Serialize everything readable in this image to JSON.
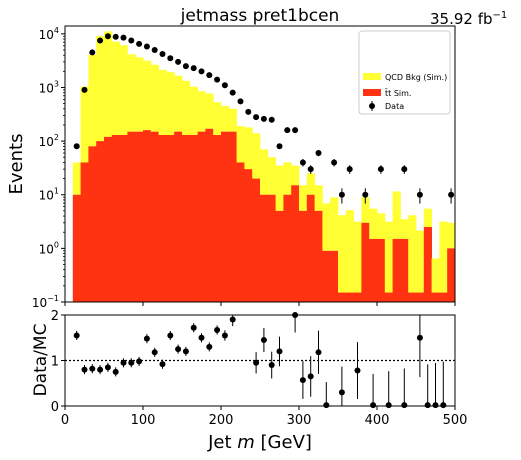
{
  "chart_data": [
    {
      "type": "bar",
      "title": "jetmass  pret1bcen",
      "lumi": "35.92 fb",
      "lumi_exp": "−1",
      "xlabel": "",
      "ylabel": "Events",
      "yscale": "log",
      "xlim": [
        0,
        500
      ],
      "ylim": [
        0.1,
        14000
      ],
      "y_ticks": [
        {
          "v": 0.1,
          "base": "10",
          "exp": "−1"
        },
        {
          "v": 1,
          "base": "10",
          "exp": "0"
        },
        {
          "v": 10,
          "base": "10",
          "exp": "1"
        },
        {
          "v": 100,
          "base": "10",
          "exp": "2"
        },
        {
          "v": 1000,
          "base": "10",
          "exp": "3"
        },
        {
          "v": 10000,
          "base": "10",
          "exp": "4"
        }
      ],
      "bin_width": 10,
      "legend_position": "upper-right",
      "stacked": true,
      "series": [
        {
          "name": "t̄t Sim.",
          "color": "#ff3311",
          "values": [
            0,
            10,
            40,
            80,
            100,
            120,
            130,
            130,
            150,
            150,
            160,
            150,
            130,
            130,
            150,
            130,
            130,
            150,
            170,
            130,
            150,
            150,
            40,
            30,
            20,
            10,
            10,
            5,
            10,
            15,
            5,
            10,
            5,
            0.9,
            0.9,
            0.15,
            0.15,
            0.15,
            3,
            1.5,
            1.5,
            0.15,
            1.5,
            1.5,
            0.15,
            0.15,
            2.5,
            0.15,
            0.15,
            1
          ]
        },
        {
          "name": "QCD Bkg (Sim.)",
          "color": "#ffff33",
          "values": [
            0,
            30,
            1000,
            4000,
            9000,
            11000,
            7000,
            6000,
            4000,
            3500,
            3000,
            2500,
            2000,
            1800,
            1500,
            1200,
            900,
            700,
            600,
            400,
            300,
            250,
            150,
            150,
            120,
            60,
            40,
            30,
            30,
            20,
            10,
            15,
            10,
            6,
            8,
            4,
            5,
            3,
            6,
            4,
            3,
            3,
            10,
            2,
            4,
            2,
            3,
            0.5,
            3,
            2
          ]
        }
      ],
      "data_series": {
        "name": "Data",
        "color": "#000000",
        "x": [
          15,
          25,
          35,
          45,
          55,
          65,
          75,
          85,
          95,
          105,
          115,
          125,
          135,
          145,
          155,
          165,
          175,
          185,
          195,
          205,
          215,
          225,
          235,
          245,
          255,
          265,
          275,
          285,
          295,
          305,
          315,
          325,
          345,
          355,
          365,
          385,
          405,
          435,
          455,
          495
        ],
        "y": [
          80,
          900,
          4500,
          7500,
          9000,
          8800,
          8500,
          7500,
          6500,
          5800,
          5000,
          4200,
          3500,
          3000,
          2500,
          2300,
          2000,
          1700,
          1400,
          1100,
          800,
          550,
          350,
          280,
          260,
          250,
          80,
          160,
          160,
          40,
          30,
          60,
          40,
          10,
          30,
          10,
          30,
          30,
          10,
          10
        ]
      }
    },
    {
      "type": "scatter",
      "xlabel": "Jet m [GeV]",
      "ylabel": "Data/MC",
      "xlim": [
        0,
        500
      ],
      "ylim": [
        0,
        2
      ],
      "x_ticks": [
        "0",
        "100",
        "200",
        "300",
        "400",
        "500"
      ],
      "y_ticks": [
        "0",
        "1",
        "2"
      ],
      "reference_line": 1,
      "x": [
        15,
        25,
        35,
        45,
        55,
        65,
        75,
        85,
        95,
        105,
        115,
        125,
        135,
        145,
        155,
        165,
        175,
        185,
        195,
        205,
        215,
        245,
        255,
        265,
        275,
        295,
        305,
        315,
        325,
        335,
        355,
        375,
        395,
        415,
        435,
        455,
        465,
        475,
        485
      ],
      "y": [
        1.55,
        0.8,
        0.82,
        0.8,
        0.85,
        0.75,
        0.95,
        0.95,
        0.98,
        1.48,
        1.18,
        0.92,
        1.55,
        1.25,
        1.2,
        1.72,
        1.5,
        1.3,
        1.67,
        1.55,
        1.9,
        0.95,
        1.45,
        0.9,
        1.2,
        2.0,
        0.57,
        0.65,
        1.18,
        0.02,
        0.3,
        0.78,
        0.02,
        0.02,
        0.02,
        1.5,
        0.02,
        0.02,
        0.02
      ]
    }
  ]
}
